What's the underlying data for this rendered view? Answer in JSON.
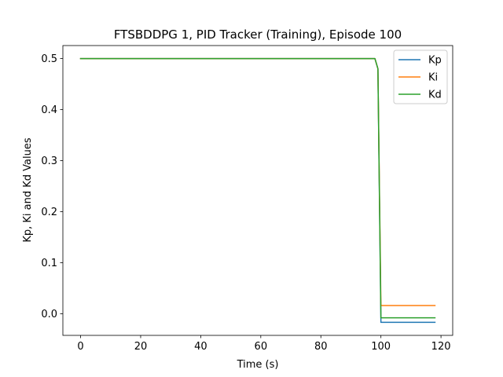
{
  "chart_data": {
    "type": "line",
    "title": "FTSBDDPG 1, PID Tracker (Training), Episode 100",
    "xlabel": "Time (s)",
    "ylabel": "Kp, Ki and Kd Values",
    "xlim": [
      -5.9,
      123.9
    ],
    "ylim": [
      -0.0425,
      0.5255
    ],
    "xticks": [
      0,
      20,
      40,
      60,
      80,
      100,
      120
    ],
    "xtick_labels": [
      "0",
      "20",
      "40",
      "60",
      "80",
      "100",
      "120"
    ],
    "yticks": [
      0.0,
      0.1,
      0.2,
      0.3,
      0.4,
      0.5
    ],
    "ytick_labels": [
      "0.0",
      "0.1",
      "0.2",
      "0.3",
      "0.4",
      "0.5"
    ],
    "grid": false,
    "legend_position": "top-right",
    "series": [
      {
        "name": "Kp",
        "color": "#1f77b4",
        "x": [
          0,
          98,
          99,
          100,
          118
        ],
        "y": [
          0.5,
          0.5,
          0.48,
          -0.017,
          -0.017
        ]
      },
      {
        "name": "Ki",
        "color": "#ff7f0e",
        "x": [
          0,
          98,
          99,
          100,
          118
        ],
        "y": [
          0.5,
          0.5,
          0.48,
          0.016,
          0.016
        ]
      },
      {
        "name": "Kd",
        "color": "#2ca02c",
        "x": [
          0,
          98,
          99,
          100,
          118
        ],
        "y": [
          0.5,
          0.5,
          0.48,
          -0.008,
          -0.008
        ]
      }
    ]
  }
}
